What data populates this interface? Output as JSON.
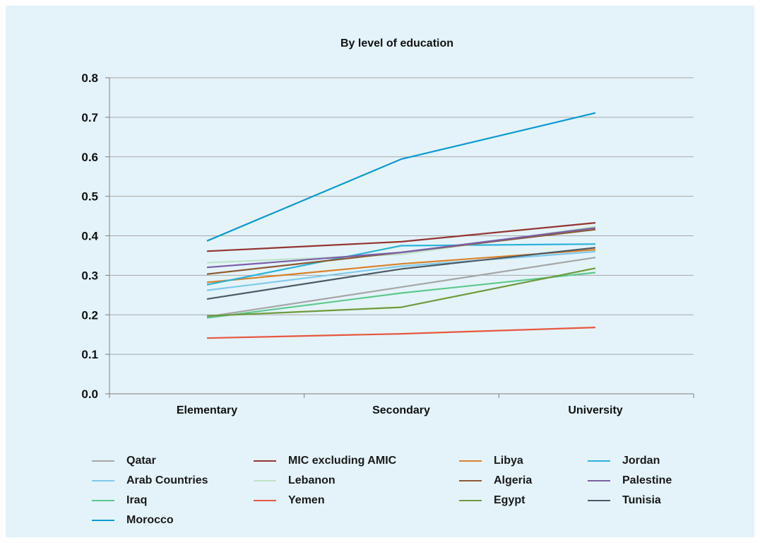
{
  "chart_data": {
    "type": "line",
    "title": "By level of education",
    "xlabel": "",
    "ylabel": "",
    "categories": [
      "Elementary",
      "Secondary",
      "University"
    ],
    "ylim": [
      0,
      0.8
    ],
    "yticks": [
      "0.0",
      "0.1",
      "0.2",
      "0.3",
      "0.4",
      "0.5",
      "0.6",
      "0.7",
      "0.8"
    ],
    "grid": true,
    "legend": "bottom",
    "series": [
      {
        "name": "Qatar",
        "color": "#a6a6a6",
        "values": [
          0.195,
          0.27,
          0.345
        ]
      },
      {
        "name": "MIC excluding AMIC",
        "color": "#943634",
        "values": [
          0.361,
          0.385,
          0.433
        ]
      },
      {
        "name": "Libya",
        "color": "#d9822b",
        "values": [
          0.282,
          0.329,
          0.365
        ]
      },
      {
        "name": "Jordan",
        "color": "#2ab3d9",
        "values": [
          0.276,
          0.375,
          0.379
        ]
      },
      {
        "name": "Arab Countries",
        "color": "#7fc9ed",
        "values": [
          0.262,
          0.323,
          0.36
        ]
      },
      {
        "name": "Lebanon",
        "color": "#bfe3c9",
        "values": [
          0.332,
          0.353,
          0.423
        ]
      },
      {
        "name": "Algeria",
        "color": "#8c5a32",
        "values": [
          0.303,
          0.358,
          0.416
        ]
      },
      {
        "name": "Palestine",
        "color": "#7b5ea7",
        "values": [
          0.32,
          0.358,
          0.42
        ]
      },
      {
        "name": "Iraq",
        "color": "#5cc98c",
        "values": [
          0.192,
          0.255,
          0.307
        ]
      },
      {
        "name": "Yemen",
        "color": "#e8573f",
        "values": [
          0.141,
          0.152,
          0.168
        ]
      },
      {
        "name": "Egypt",
        "color": "#6f9a3d",
        "values": [
          0.197,
          0.219,
          0.318
        ]
      },
      {
        "name": "Tunisia",
        "color": "#4d5a66",
        "values": [
          0.24,
          0.316,
          0.37
        ]
      },
      {
        "name": "Morocco",
        "color": "#0a9ad3",
        "values": [
          0.387,
          0.594,
          0.711
        ]
      }
    ]
  }
}
